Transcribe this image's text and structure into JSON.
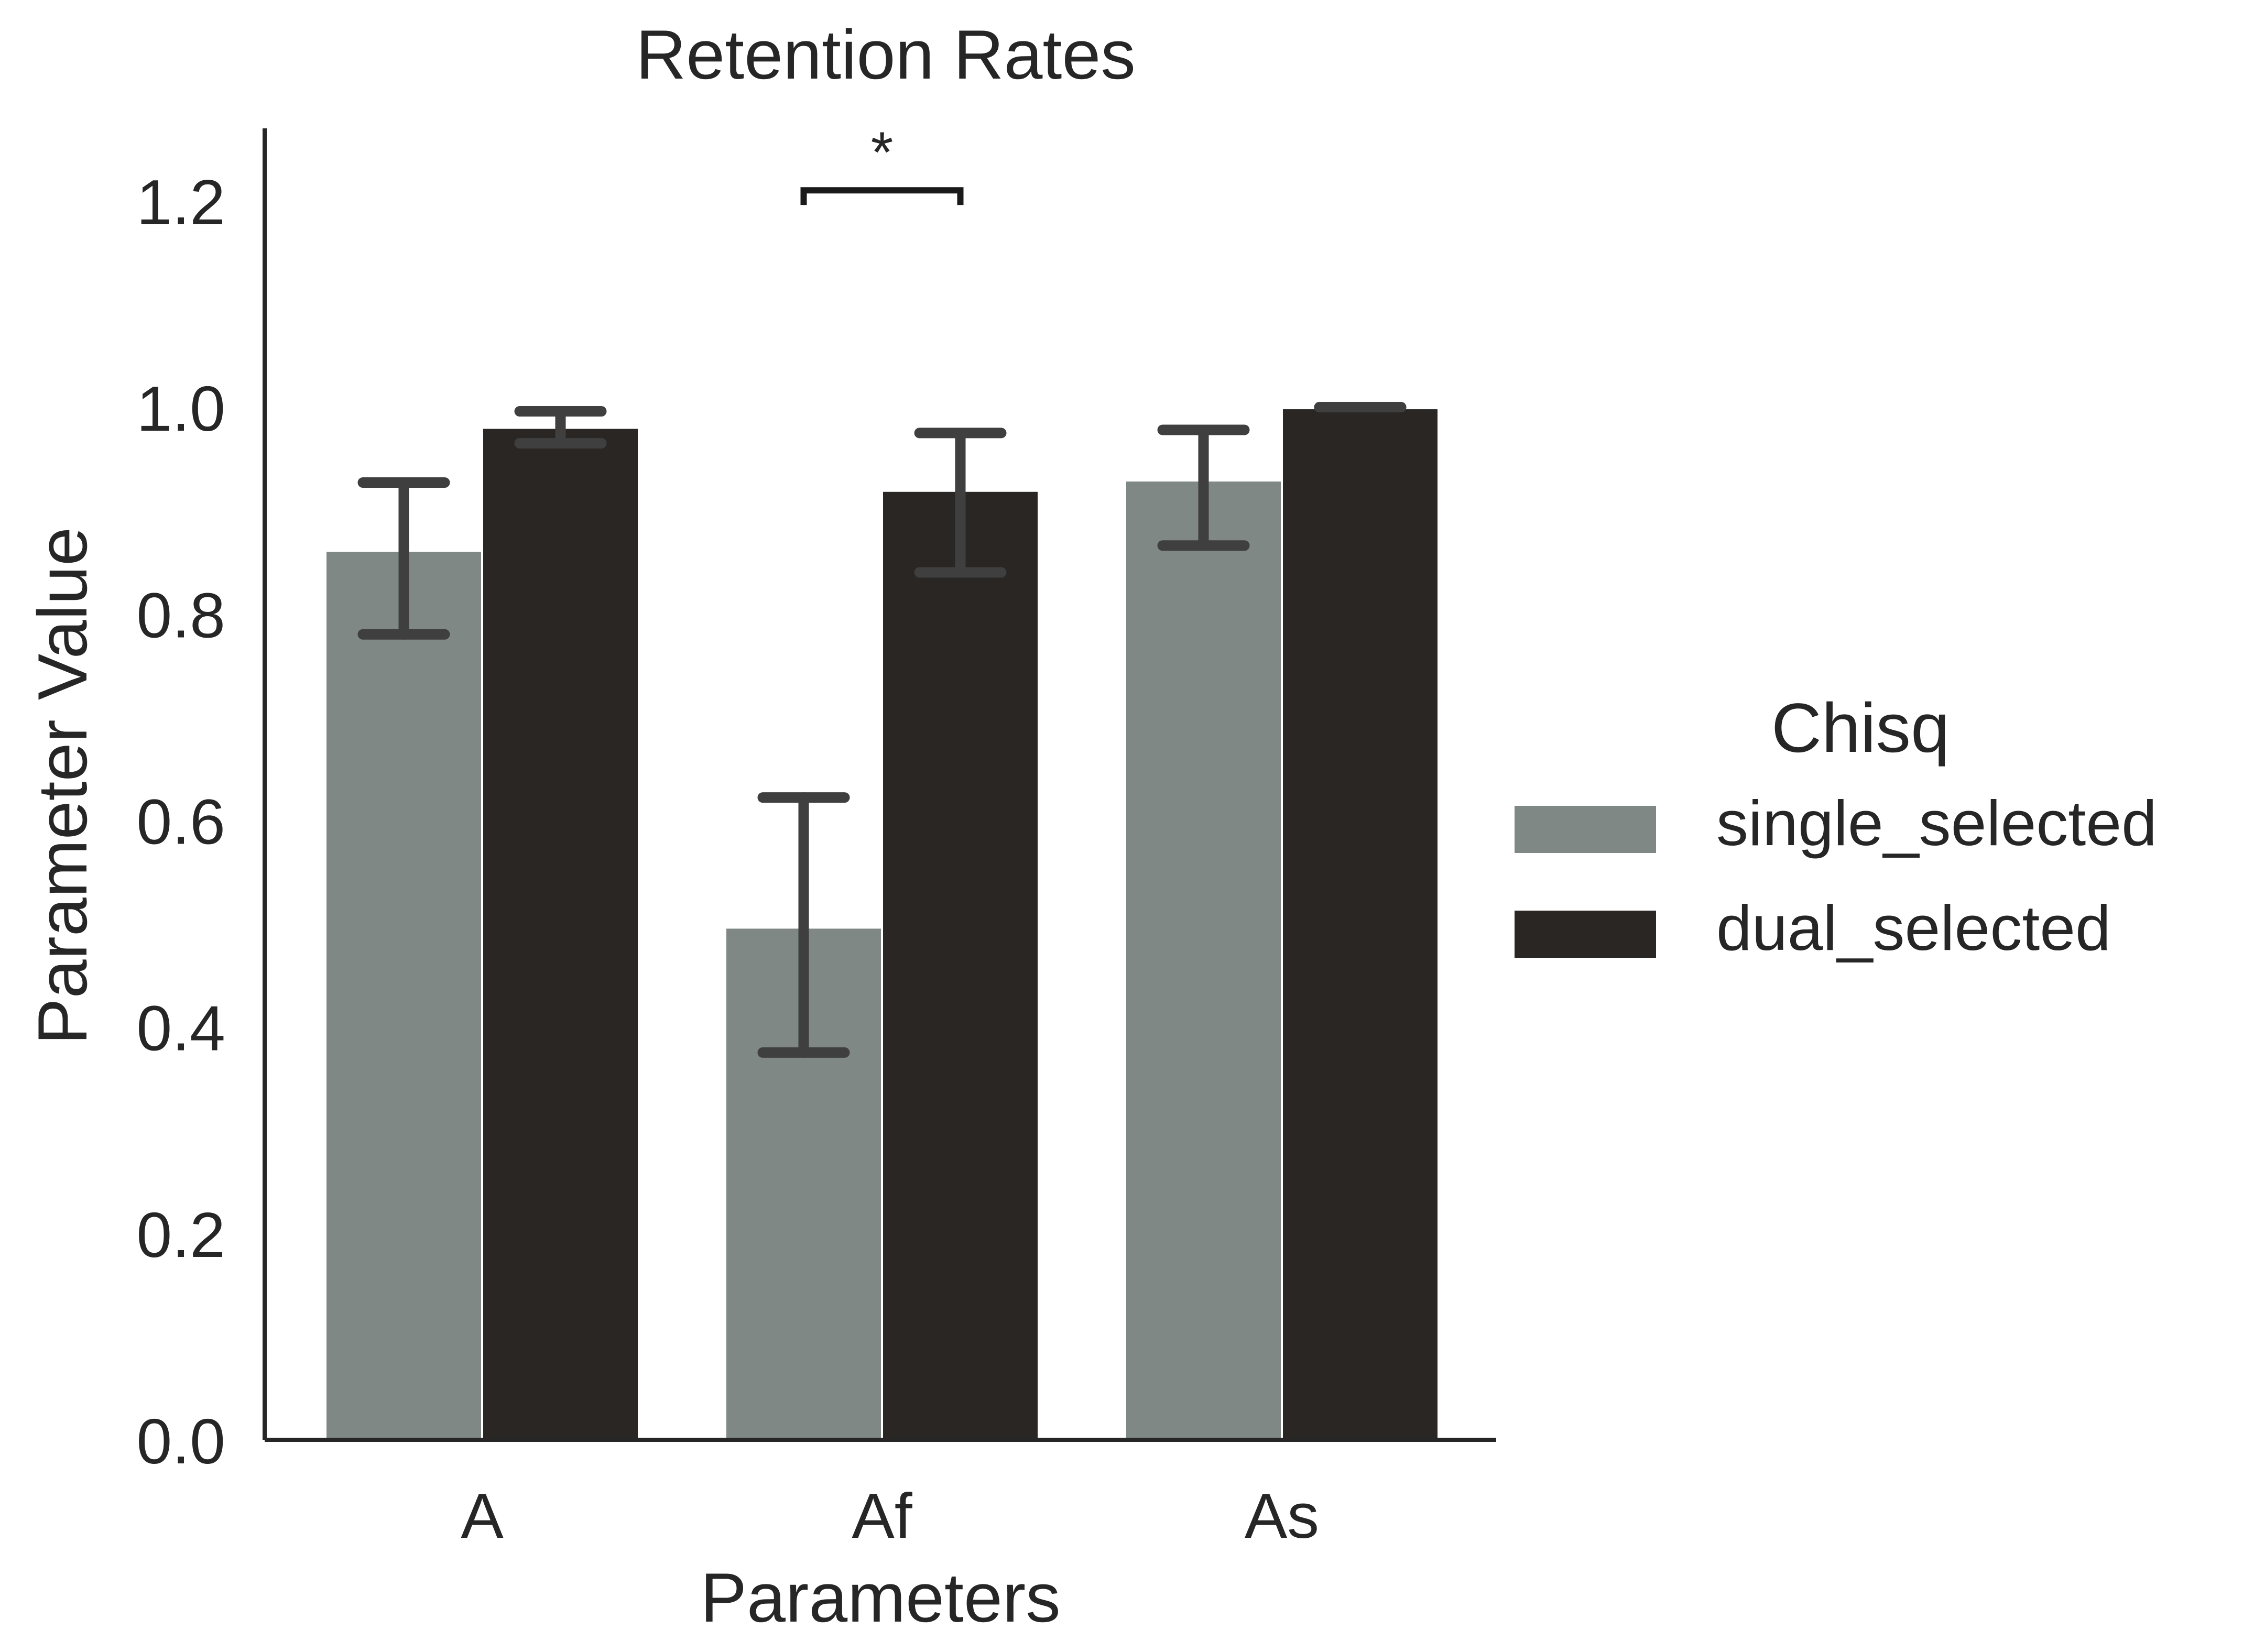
{
  "chart_data": {
    "type": "bar",
    "title": "Retention Rates",
    "xlabel": "Parameters",
    "ylabel": "Parameter Value",
    "categories": [
      "A",
      "Af",
      "As"
    ],
    "ylim": [
      0,
      1.27
    ],
    "yticks": [
      0.0,
      0.2,
      0.4,
      0.6,
      0.8,
      1.0,
      1.2
    ],
    "ytick_labels": [
      "0.0",
      "0.2",
      "0.4",
      "0.6",
      "0.8",
      "1.0",
      "1.2"
    ],
    "grid": false,
    "legend": {
      "title": "Chisq",
      "placement": "center-right"
    },
    "series": [
      {
        "name": "single_selected",
        "color": "#808885",
        "values": [
          0.86,
          0.495,
          0.928
        ],
        "error_low": [
          0.78,
          0.375,
          0.866
        ],
        "error_high": [
          0.927,
          0.622,
          0.978
        ]
      },
      {
        "name": "dual_selected",
        "color": "#292624",
        "values": [
          0.979,
          0.918,
          0.998
        ],
        "error_low": [
          0.965,
          0.84,
          1.0
        ],
        "error_high": [
          0.996,
          0.975,
          1.0
        ]
      }
    ],
    "annotations": [
      {
        "type": "significance",
        "text": "*",
        "category": "Af",
        "y": 1.21
      }
    ]
  }
}
